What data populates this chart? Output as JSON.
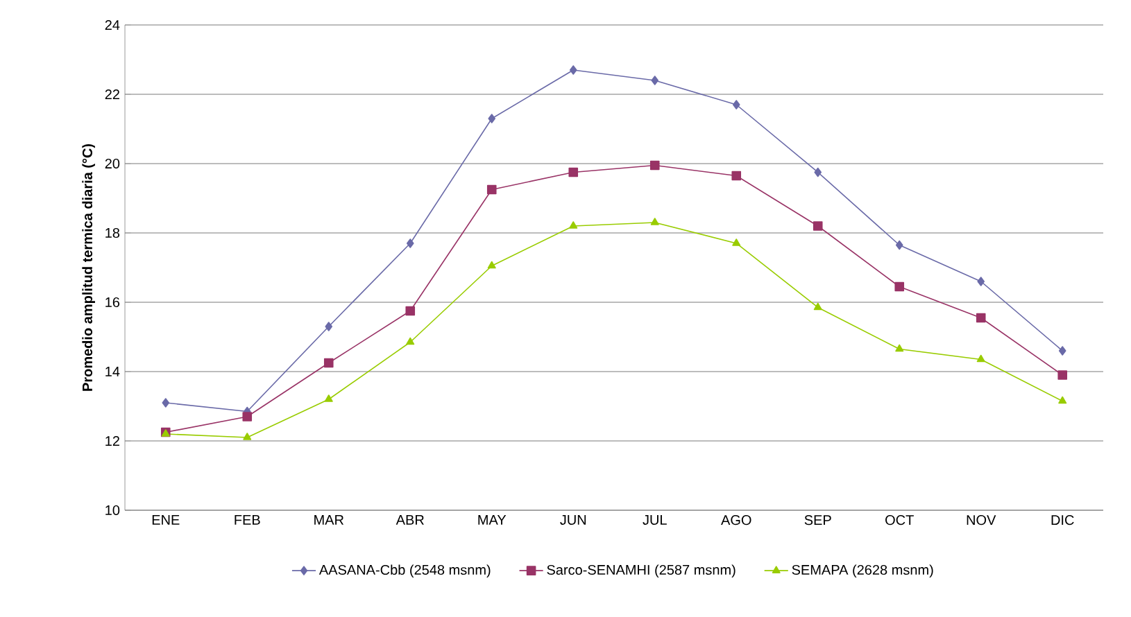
{
  "chart_data": {
    "type": "line",
    "ylabel": "Promedio amplitud termica diaria (°C)",
    "categories": [
      "ENE",
      "FEB",
      "MAR",
      "ABR",
      "MAY",
      "JUN",
      "JUL",
      "AGO",
      "SEP",
      "OCT",
      "NOV",
      "DIC"
    ],
    "series": [
      {
        "name": "AASANA-Cbb (2548 msnm)",
        "color": "#6a6aa8",
        "marker": "diamond",
        "values": [
          13.1,
          12.85,
          15.3,
          17.7,
          21.3,
          22.7,
          22.4,
          21.7,
          19.75,
          17.65,
          16.6,
          14.6
        ]
      },
      {
        "name": "Sarco-SENAMHI (2587 msnm)",
        "color": "#993366",
        "marker": "square",
        "values": [
          12.25,
          12.7,
          14.25,
          15.75,
          19.25,
          19.75,
          19.95,
          19.65,
          18.2,
          16.45,
          15.55,
          13.9
        ]
      },
      {
        "name": "SEMAPA (2628 msnm)",
        "color": "#99cc00",
        "marker": "triangle",
        "values": [
          12.2,
          12.1,
          13.2,
          14.85,
          17.05,
          18.2,
          18.3,
          17.7,
          15.85,
          14.65,
          14.35,
          13.15
        ]
      }
    ],
    "ylim": [
      10,
      24
    ],
    "yticks": [
      10,
      12,
      14,
      16,
      18,
      20,
      22,
      24
    ],
    "grid": "y",
    "legend": "bottom",
    "line_style": "solid"
  }
}
